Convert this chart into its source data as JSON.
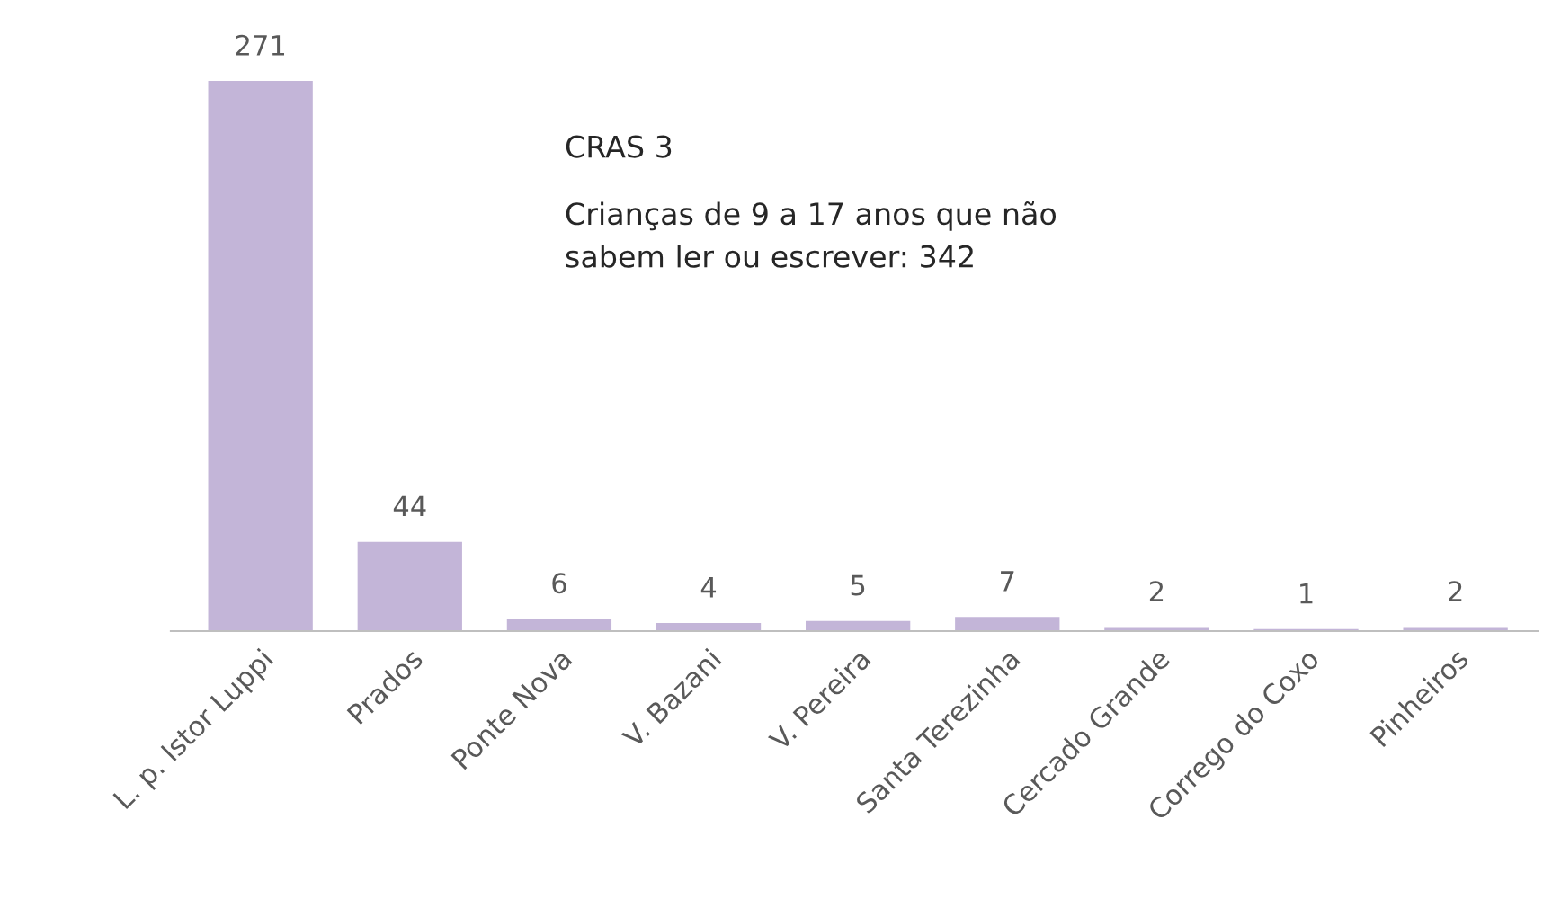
{
  "chart_data": {
    "type": "bar",
    "title": "CRAS 3",
    "subtitle": "Crianças de 9 a 17 anos que não\nsabem ler ou escrever: 342",
    "categories": [
      "L. p. Istor Luppi",
      "Prados",
      "Ponte Nova",
      "V. Bazani",
      "V. Pereira",
      "Santa Terezinha",
      "Cercado Grande",
      "Corrego do Coxo",
      "Pinheiros"
    ],
    "values": [
      271,
      44,
      6,
      4,
      5,
      7,
      2,
      1,
      2
    ],
    "color": "#c3b5d8",
    "data_labels": true,
    "ylim": [
      0,
      271
    ],
    "tick_labels": "x",
    "grid": false,
    "legend": false
  }
}
